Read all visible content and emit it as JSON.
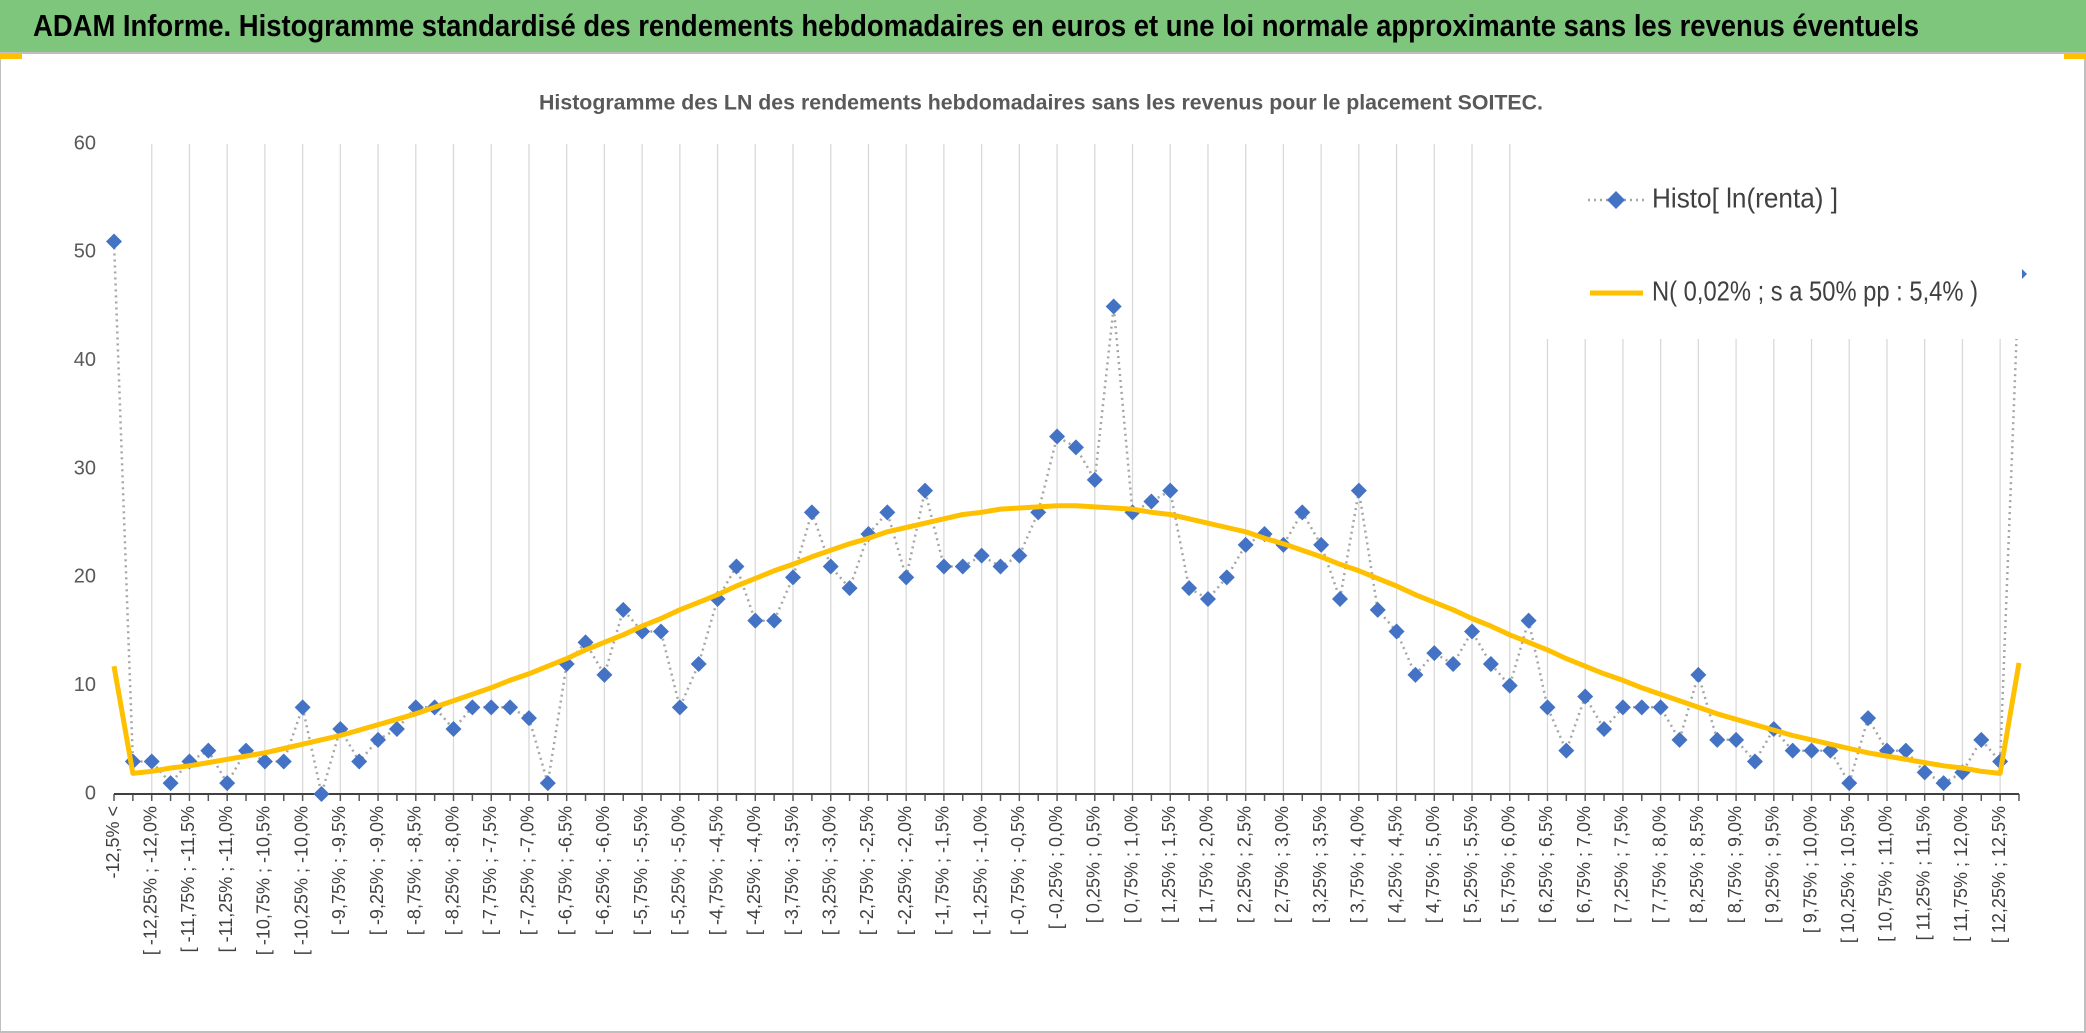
{
  "header": {
    "title": "ADAM Informe. Histogramme standardisé des rendements hebdomadaires en euros et une loi normale approximante sans les revenus éventuels"
  },
  "chart_data": {
    "type": "line",
    "title": "Histogramme des LN des rendements hebdomadaires sans les revenus pour le placement SOITEC.",
    "categories": [
      "-12,5% <",
      null,
      "[ -12,25% ; -12,0%",
      null,
      "[ -11,75% ; -11,5%",
      null,
      "[ -11,25% ; -11,0%",
      null,
      "[ -10,75% ; -10,5%",
      null,
      "[ -10,25% ; -10,0%",
      null,
      "[ -9,75% ; -9,5%",
      null,
      "[ -9,25% ; -9,0%",
      null,
      "[ -8,75% ; -8,5%",
      null,
      "[ -8,25% ; -8,0%",
      null,
      "[ -7,75% ; -7,5%",
      null,
      "[ -7,25% ; -7,0%",
      null,
      "[ -6,75% ; -6,5%",
      null,
      "[ -6,25% ; -6,0%",
      null,
      "[ -5,75% ; -5,5%",
      null,
      "[ -5,25% ; -5,0%",
      null,
      "[ -4,75% ; -4,5%",
      null,
      "[ -4,25% ; -4,0%",
      null,
      "[ -3,75% ; -3,5%",
      null,
      "[ -3,25% ; -3,0%",
      null,
      "[ -2,75% ; -2,5%",
      null,
      "[ -2,25% ; -2,0%",
      null,
      "[ -1,75% ; -1,5%",
      null,
      "[ -1,25% ; -1,0%",
      null,
      "[ -0,75% ; -0,5%",
      null,
      "[ -0,25% ; 0,0%",
      null,
      "[ 0,25% ; 0,5%",
      null,
      "[ 0,75% ; 1,0%",
      null,
      "[ 1,25% ; 1,5%",
      null,
      "[ 1,75% ; 2,0%",
      null,
      "[ 2,25% ; 2,5%",
      null,
      "[ 2,75% ; 3,0%",
      null,
      "[ 3,25% ; 3,5%",
      null,
      "[ 3,75% ; 4,0%",
      null,
      "[ 4,25% ; 4,5%",
      null,
      "[ 4,75% ; 5,0%",
      null,
      "[ 5,25% ; 5,5%",
      null,
      "[ 5,75% ; 6,0%",
      null,
      "[ 6,25% ; 6,5%",
      null,
      "[ 6,75% ; 7,0%",
      null,
      "[ 7,25% ; 7,5%",
      null,
      "[ 7,75% ; 8,0%",
      null,
      "[ 8,25% ; 8,5%",
      null,
      "[ 8,75% ; 9,0%",
      null,
      "[ 9,25% ; 9,5%",
      null,
      "[ 9,75% ; 10,0%",
      null,
      "[ 10,25% ; 10,5%",
      null,
      "[ 10,75% ; 11,0%",
      null,
      "[ 11,25% ; 11,5%",
      null,
      "[ 11,75% ; 12,0%",
      null,
      "[ 12,25% ; 12,5%",
      null
    ],
    "series": [
      {
        "name": "Histo[ ln(renta) ]",
        "color": "#4472c4",
        "line_color": "#a6a6a6",
        "marker": "diamond",
        "values": [
          51,
          3,
          3,
          1,
          3,
          4,
          1,
          4,
          3,
          3,
          8,
          0,
          6,
          3,
          5,
          6,
          8,
          8,
          6,
          8,
          8,
          8,
          7,
          1,
          12,
          14,
          11,
          17,
          15,
          15,
          8,
          12,
          18,
          21,
          16,
          16,
          20,
          26,
          21,
          19,
          24,
          26,
          20,
          28,
          21,
          21,
          22,
          21,
          22,
          26,
          33,
          32,
          29,
          45,
          26,
          27,
          28,
          19,
          18,
          20,
          23,
          24,
          23,
          26,
          23,
          18,
          28,
          17,
          15,
          11,
          13,
          12,
          15,
          12,
          10,
          16,
          8,
          4,
          9,
          6,
          8,
          8,
          8,
          5,
          11,
          5,
          5,
          3,
          6,
          4,
          4,
          4,
          1,
          7,
          4,
          4,
          2,
          1,
          2,
          5,
          3,
          48
        ]
      },
      {
        "name": "N( 0,02% ; s a 50% pp : 5,4% )",
        "color": "#ffc000",
        "values": [
          11.8,
          1.9,
          2.1,
          2.4,
          2.6,
          2.9,
          3.2,
          3.5,
          3.8,
          4.2,
          4.6,
          5.0,
          5.4,
          5.9,
          6.4,
          6.9,
          7.4,
          8.0,
          8.6,
          9.2,
          9.8,
          10.5,
          11.1,
          11.8,
          12.5,
          13.3,
          14.0,
          14.7,
          15.5,
          16.2,
          17.0,
          17.7,
          18.4,
          19.2,
          19.9,
          20.6,
          21.2,
          21.9,
          22.5,
          23.1,
          23.6,
          24.2,
          24.6,
          25.0,
          25.4,
          25.8,
          26.0,
          26.3,
          26.4,
          26.5,
          26.6,
          26.6,
          26.5,
          26.4,
          26.3,
          26.0,
          25.8,
          25.4,
          25.0,
          24.6,
          24.2,
          23.6,
          23.1,
          22.5,
          21.9,
          21.2,
          20.6,
          19.9,
          19.2,
          18.4,
          17.7,
          17.0,
          16.2,
          15.5,
          14.7,
          14.0,
          13.3,
          12.5,
          11.8,
          11.1,
          10.5,
          9.8,
          9.2,
          8.6,
          8.0,
          7.4,
          6.9,
          6.4,
          5.9,
          5.4,
          5.0,
          4.6,
          4.2,
          3.8,
          3.5,
          3.2,
          2.9,
          2.6,
          2.4,
          2.1,
          1.9,
          12.1
        ]
      }
    ],
    "ylim": [
      0,
      60
    ],
    "yticks": [
      0,
      10,
      20,
      30,
      40,
      50,
      60
    ],
    "grid": "x",
    "legend": "top-right"
  }
}
